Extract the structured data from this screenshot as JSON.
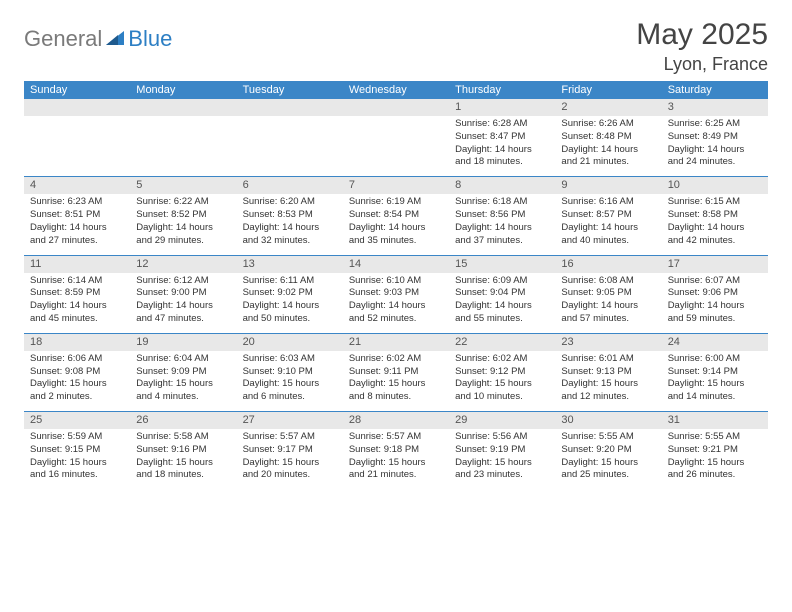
{
  "logo": {
    "textGray": "General",
    "textBlue": "Blue"
  },
  "title": "May 2025",
  "location": "Lyon, France",
  "colors": {
    "headerBar": "#3b86c7",
    "dayNumBg": "#e8e8e8",
    "logoGray": "#7a7a7a",
    "logoBlue": "#2d7fc4",
    "titleColor": "#444444"
  },
  "dayNames": [
    "Sunday",
    "Monday",
    "Tuesday",
    "Wednesday",
    "Thursday",
    "Friday",
    "Saturday"
  ],
  "weeks": [
    [
      {
        "n": "",
        "sunrise": "",
        "sunset": "",
        "daylight": ""
      },
      {
        "n": "",
        "sunrise": "",
        "sunset": "",
        "daylight": ""
      },
      {
        "n": "",
        "sunrise": "",
        "sunset": "",
        "daylight": ""
      },
      {
        "n": "",
        "sunrise": "",
        "sunset": "",
        "daylight": ""
      },
      {
        "n": "1",
        "sunrise": "Sunrise: 6:28 AM",
        "sunset": "Sunset: 8:47 PM",
        "daylight": "Daylight: 14 hours and 18 minutes."
      },
      {
        "n": "2",
        "sunrise": "Sunrise: 6:26 AM",
        "sunset": "Sunset: 8:48 PM",
        "daylight": "Daylight: 14 hours and 21 minutes."
      },
      {
        "n": "3",
        "sunrise": "Sunrise: 6:25 AM",
        "sunset": "Sunset: 8:49 PM",
        "daylight": "Daylight: 14 hours and 24 minutes."
      }
    ],
    [
      {
        "n": "4",
        "sunrise": "Sunrise: 6:23 AM",
        "sunset": "Sunset: 8:51 PM",
        "daylight": "Daylight: 14 hours and 27 minutes."
      },
      {
        "n": "5",
        "sunrise": "Sunrise: 6:22 AM",
        "sunset": "Sunset: 8:52 PM",
        "daylight": "Daylight: 14 hours and 29 minutes."
      },
      {
        "n": "6",
        "sunrise": "Sunrise: 6:20 AM",
        "sunset": "Sunset: 8:53 PM",
        "daylight": "Daylight: 14 hours and 32 minutes."
      },
      {
        "n": "7",
        "sunrise": "Sunrise: 6:19 AM",
        "sunset": "Sunset: 8:54 PM",
        "daylight": "Daylight: 14 hours and 35 minutes."
      },
      {
        "n": "8",
        "sunrise": "Sunrise: 6:18 AM",
        "sunset": "Sunset: 8:56 PM",
        "daylight": "Daylight: 14 hours and 37 minutes."
      },
      {
        "n": "9",
        "sunrise": "Sunrise: 6:16 AM",
        "sunset": "Sunset: 8:57 PM",
        "daylight": "Daylight: 14 hours and 40 minutes."
      },
      {
        "n": "10",
        "sunrise": "Sunrise: 6:15 AM",
        "sunset": "Sunset: 8:58 PM",
        "daylight": "Daylight: 14 hours and 42 minutes."
      }
    ],
    [
      {
        "n": "11",
        "sunrise": "Sunrise: 6:14 AM",
        "sunset": "Sunset: 8:59 PM",
        "daylight": "Daylight: 14 hours and 45 minutes."
      },
      {
        "n": "12",
        "sunrise": "Sunrise: 6:12 AM",
        "sunset": "Sunset: 9:00 PM",
        "daylight": "Daylight: 14 hours and 47 minutes."
      },
      {
        "n": "13",
        "sunrise": "Sunrise: 6:11 AM",
        "sunset": "Sunset: 9:02 PM",
        "daylight": "Daylight: 14 hours and 50 minutes."
      },
      {
        "n": "14",
        "sunrise": "Sunrise: 6:10 AM",
        "sunset": "Sunset: 9:03 PM",
        "daylight": "Daylight: 14 hours and 52 minutes."
      },
      {
        "n": "15",
        "sunrise": "Sunrise: 6:09 AM",
        "sunset": "Sunset: 9:04 PM",
        "daylight": "Daylight: 14 hours and 55 minutes."
      },
      {
        "n": "16",
        "sunrise": "Sunrise: 6:08 AM",
        "sunset": "Sunset: 9:05 PM",
        "daylight": "Daylight: 14 hours and 57 minutes."
      },
      {
        "n": "17",
        "sunrise": "Sunrise: 6:07 AM",
        "sunset": "Sunset: 9:06 PM",
        "daylight": "Daylight: 14 hours and 59 minutes."
      }
    ],
    [
      {
        "n": "18",
        "sunrise": "Sunrise: 6:06 AM",
        "sunset": "Sunset: 9:08 PM",
        "daylight": "Daylight: 15 hours and 2 minutes."
      },
      {
        "n": "19",
        "sunrise": "Sunrise: 6:04 AM",
        "sunset": "Sunset: 9:09 PM",
        "daylight": "Daylight: 15 hours and 4 minutes."
      },
      {
        "n": "20",
        "sunrise": "Sunrise: 6:03 AM",
        "sunset": "Sunset: 9:10 PM",
        "daylight": "Daylight: 15 hours and 6 minutes."
      },
      {
        "n": "21",
        "sunrise": "Sunrise: 6:02 AM",
        "sunset": "Sunset: 9:11 PM",
        "daylight": "Daylight: 15 hours and 8 minutes."
      },
      {
        "n": "22",
        "sunrise": "Sunrise: 6:02 AM",
        "sunset": "Sunset: 9:12 PM",
        "daylight": "Daylight: 15 hours and 10 minutes."
      },
      {
        "n": "23",
        "sunrise": "Sunrise: 6:01 AM",
        "sunset": "Sunset: 9:13 PM",
        "daylight": "Daylight: 15 hours and 12 minutes."
      },
      {
        "n": "24",
        "sunrise": "Sunrise: 6:00 AM",
        "sunset": "Sunset: 9:14 PM",
        "daylight": "Daylight: 15 hours and 14 minutes."
      }
    ],
    [
      {
        "n": "25",
        "sunrise": "Sunrise: 5:59 AM",
        "sunset": "Sunset: 9:15 PM",
        "daylight": "Daylight: 15 hours and 16 minutes."
      },
      {
        "n": "26",
        "sunrise": "Sunrise: 5:58 AM",
        "sunset": "Sunset: 9:16 PM",
        "daylight": "Daylight: 15 hours and 18 minutes."
      },
      {
        "n": "27",
        "sunrise": "Sunrise: 5:57 AM",
        "sunset": "Sunset: 9:17 PM",
        "daylight": "Daylight: 15 hours and 20 minutes."
      },
      {
        "n": "28",
        "sunrise": "Sunrise: 5:57 AM",
        "sunset": "Sunset: 9:18 PM",
        "daylight": "Daylight: 15 hours and 21 minutes."
      },
      {
        "n": "29",
        "sunrise": "Sunrise: 5:56 AM",
        "sunset": "Sunset: 9:19 PM",
        "daylight": "Daylight: 15 hours and 23 minutes."
      },
      {
        "n": "30",
        "sunrise": "Sunrise: 5:55 AM",
        "sunset": "Sunset: 9:20 PM",
        "daylight": "Daylight: 15 hours and 25 minutes."
      },
      {
        "n": "31",
        "sunrise": "Sunrise: 5:55 AM",
        "sunset": "Sunset: 9:21 PM",
        "daylight": "Daylight: 15 hours and 26 minutes."
      }
    ]
  ]
}
